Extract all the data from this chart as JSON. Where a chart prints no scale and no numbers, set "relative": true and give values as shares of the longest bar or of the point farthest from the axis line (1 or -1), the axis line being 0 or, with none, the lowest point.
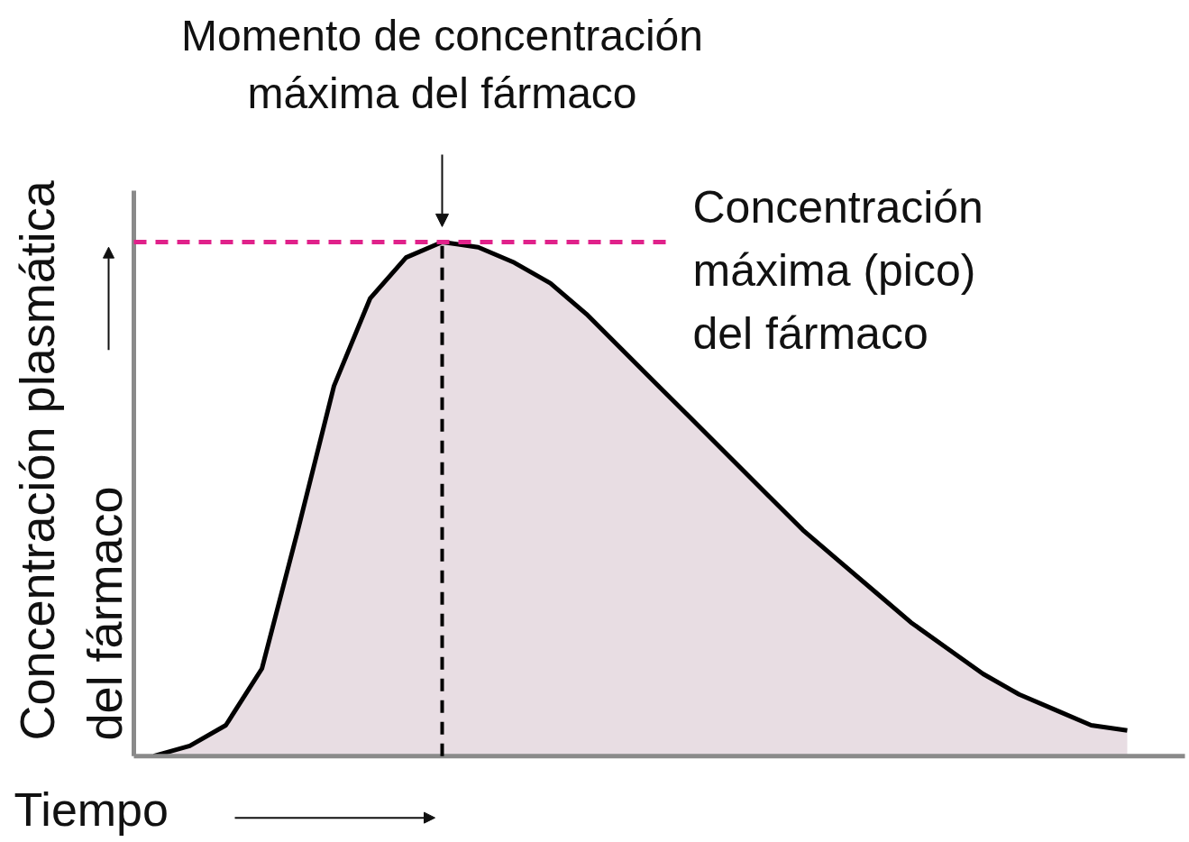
{
  "chart_data": {
    "type": "area",
    "relative": true,
    "xlabel": "Tiempo",
    "ylabel": "Concentración plasmática\ndel fármaco",
    "categories": [
      null,
      null,
      null,
      null,
      null,
      null,
      null,
      null,
      null,
      null,
      null,
      null,
      null,
      null,
      null,
      null,
      null,
      null,
      null,
      null,
      null,
      null,
      null,
      null,
      null,
      null,
      null,
      null
    ],
    "color": "#e8dde3",
    "values": [
      0.0,
      0.02,
      0.06,
      0.17,
      0.44,
      0.72,
      0.89,
      0.97,
      1.0,
      0.99,
      0.96,
      0.92,
      0.86,
      0.79,
      0.72,
      0.65,
      0.58,
      0.51,
      0.44,
      0.38,
      0.32,
      0.26,
      0.21,
      0.16,
      0.12,
      0.09,
      0.06,
      0.05
    ],
    "annotations": [
      "Momento de concentración\nmáxima del fármaco",
      "Concentración\nmáxima (pico)\ndel fármaco"
    ]
  }
}
